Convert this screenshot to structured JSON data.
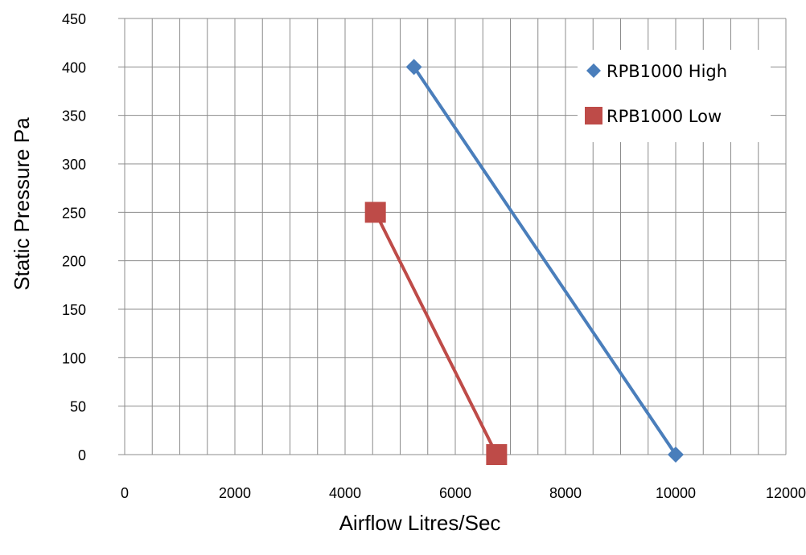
{
  "chart_data": {
    "type": "scatter",
    "xlabel": "Airflow Litres/Sec",
    "ylabel": "Static Pressure Pa",
    "xlim": [
      0,
      12000
    ],
    "ylim": [
      0,
      450
    ],
    "x_ticks": [
      0,
      2000,
      4000,
      6000,
      8000,
      10000,
      12000
    ],
    "y_ticks": [
      0,
      50,
      100,
      150,
      200,
      250,
      300,
      350,
      400,
      450
    ],
    "x_tick_labels": [
      "0",
      "2000",
      "4000",
      "6000",
      "8000",
      "10000",
      "12000"
    ],
    "y_tick_labels": [
      "0",
      "50",
      "100",
      "150",
      "200",
      "250",
      "300",
      "350",
      "400",
      "450"
    ],
    "grid": true,
    "legend_position": "top-right",
    "series": [
      {
        "name": "RPB1000 High",
        "color": "#4a7ebb",
        "marker": "diamond",
        "points": [
          [
            5250,
            400
          ],
          [
            10000,
            0
          ]
        ]
      },
      {
        "name": "RPB1000 Low",
        "color": "#be4b48",
        "marker": "square",
        "points": [
          [
            4550,
            250
          ],
          [
            6750,
            0
          ]
        ]
      }
    ]
  }
}
